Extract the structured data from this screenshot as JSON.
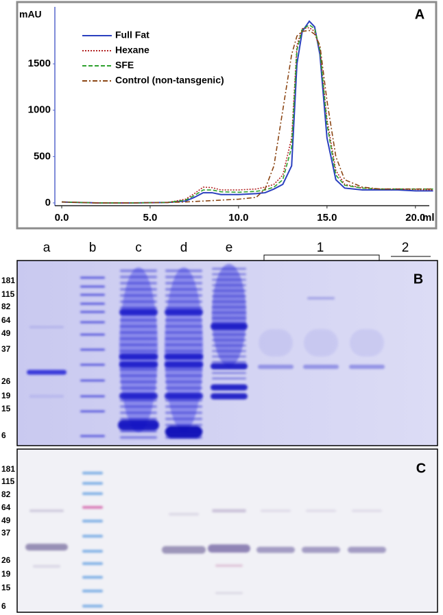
{
  "chart_data": {
    "type": "line",
    "panel": "A",
    "y_label": "mAU",
    "x_label": "ml",
    "x": [
      0,
      2,
      4,
      6,
      7,
      7.5,
      8,
      8.5,
      9,
      10,
      11,
      11.5,
      12,
      12.5,
      13,
      13.3,
      13.6,
      14,
      14.3,
      14.6,
      15,
      15.5,
      16,
      17,
      18,
      19,
      20,
      21
    ],
    "series": [
      {
        "name": "Full Fat",
        "color": "#2a3fbf",
        "dash": "solid",
        "values": [
          10,
          0,
          0,
          5,
          20,
          60,
          110,
          110,
          90,
          90,
          100,
          110,
          150,
          200,
          400,
          1500,
          1850,
          1960,
          1900,
          1600,
          700,
          250,
          160,
          140,
          140,
          140,
          130,
          130
        ]
      },
      {
        "name": "Hexane",
        "color": "#b22222",
        "dash": "dotted",
        "values": [
          10,
          0,
          0,
          5,
          40,
          100,
          170,
          165,
          140,
          140,
          150,
          170,
          200,
          300,
          700,
          1700,
          1880,
          1890,
          1850,
          1650,
          900,
          350,
          200,
          160,
          150,
          150,
          145,
          140
        ]
      },
      {
        "name": "SFE",
        "color": "#2ca02c",
        "dash": "dashed",
        "values": [
          10,
          0,
          0,
          5,
          30,
          80,
          140,
          140,
          120,
          115,
          125,
          140,
          170,
          250,
          600,
          1650,
          1870,
          1920,
          1880,
          1650,
          850,
          300,
          190,
          160,
          150,
          150,
          150,
          150
        ]
      },
      {
        "name": "Control (non-tansgenic)",
        "color": "#8b4513",
        "dash": "dashdot",
        "values": [
          10,
          0,
          0,
          5,
          10,
          15,
          20,
          25,
          30,
          40,
          60,
          150,
          400,
          1000,
          1600,
          1800,
          1850,
          1860,
          1820,
          1700,
          1100,
          500,
          250,
          170,
          150,
          150,
          150,
          150
        ]
      }
    ],
    "xlim": [
      0,
      20.9
    ],
    "ylim": [
      -30,
      2100
    ],
    "xticks": [
      {
        "value": 0,
        "label": "0.0"
      },
      {
        "value": 5,
        "label": "5.0"
      },
      {
        "value": 10,
        "label": "10.0"
      },
      {
        "value": 15,
        "label": "15.0"
      },
      {
        "value": 20,
        "label": "20.0"
      }
    ],
    "yticks": [
      0,
      500,
      1000,
      1500
    ]
  },
  "gels": {
    "lanes": [
      "a",
      "b",
      "c",
      "d",
      "e",
      "1",
      "2"
    ],
    "panel_b": "B",
    "panel_c": "C",
    "markers_b": [
      181,
      115,
      82,
      64,
      49,
      37,
      26,
      19,
      15,
      6
    ],
    "markers_c": [
      181,
      115,
      82,
      64,
      49,
      37,
      26,
      19,
      15,
      6
    ]
  }
}
